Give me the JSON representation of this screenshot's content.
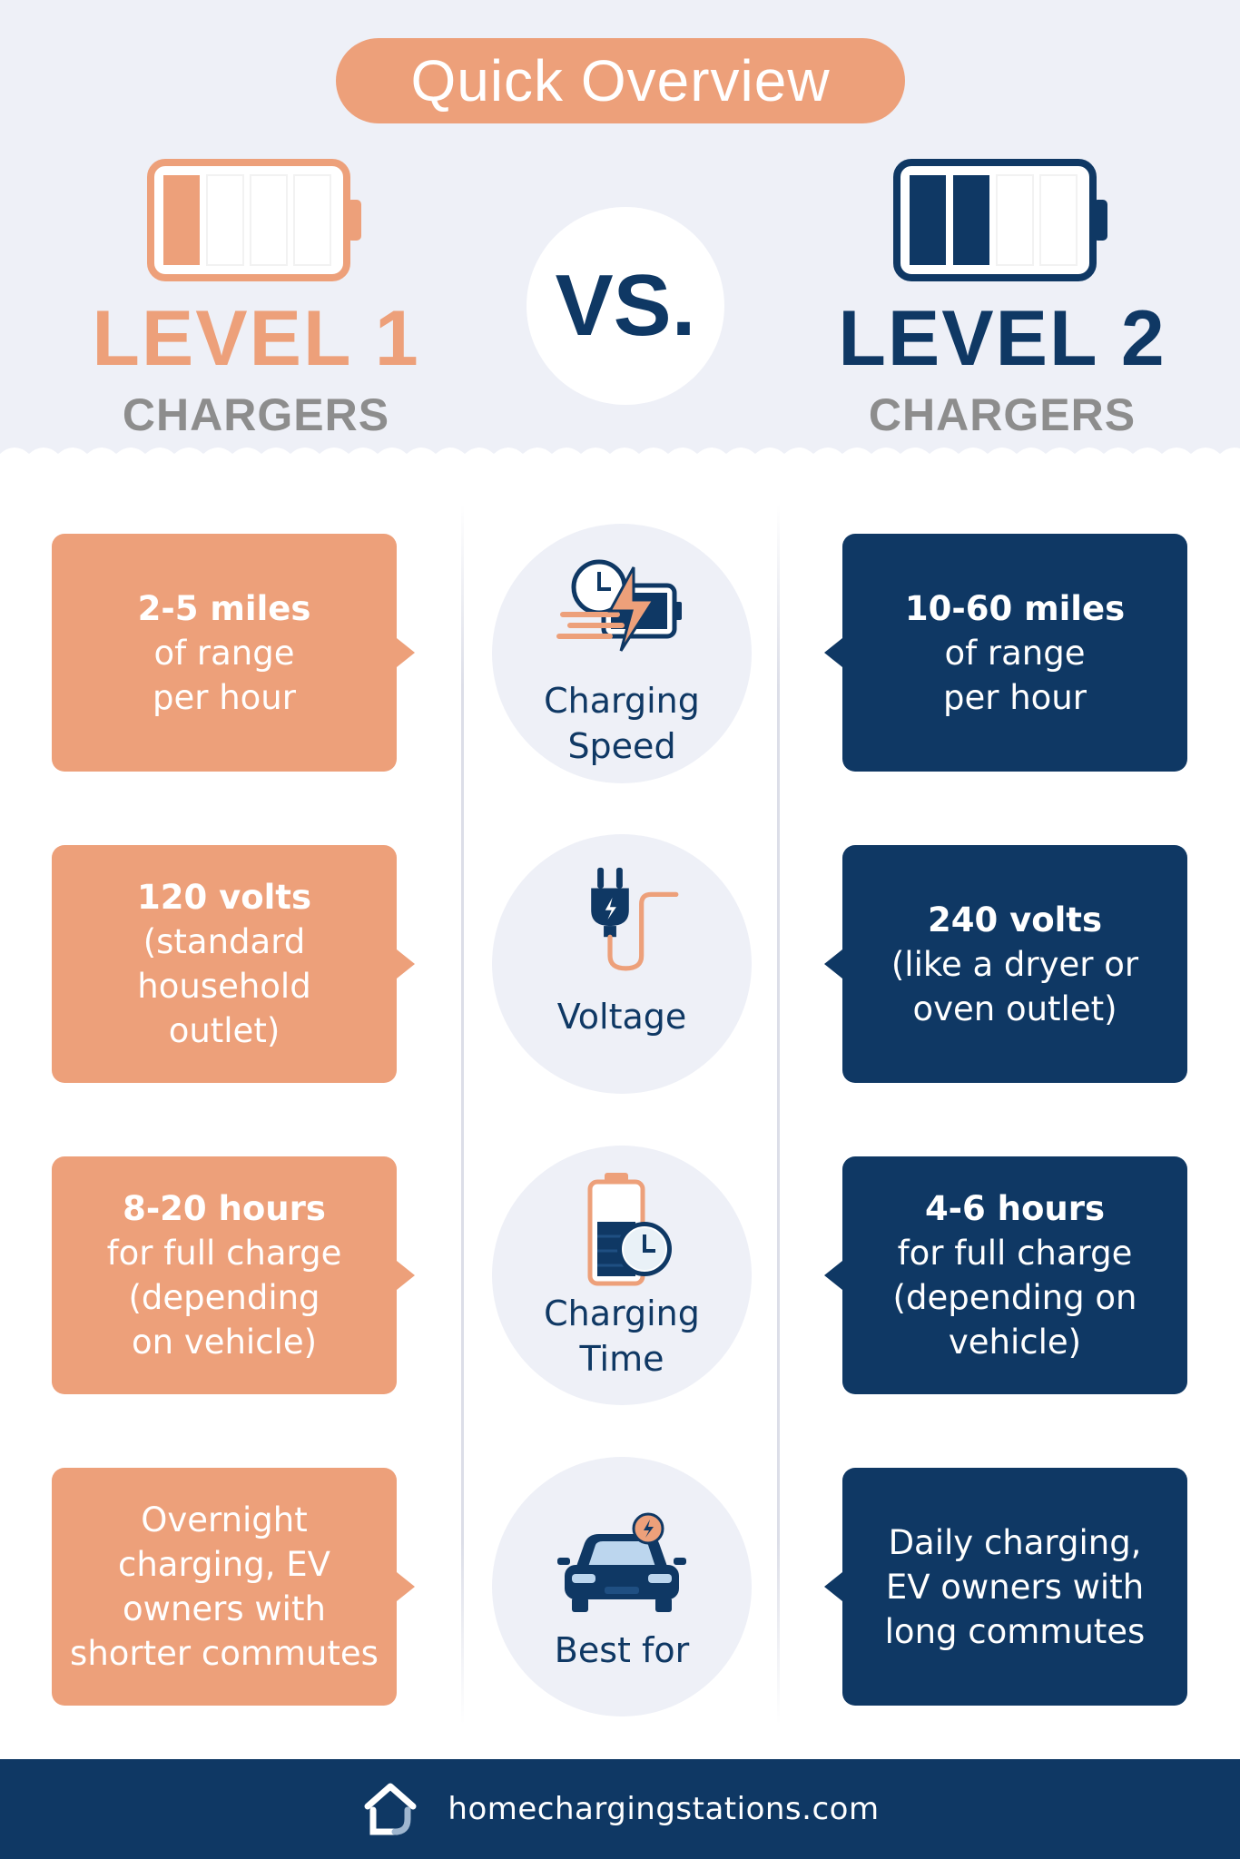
{
  "header": {
    "title": "Quick Overview",
    "vs": "VS.",
    "level1": {
      "title": "LEVEL 1",
      "subtitle": "CHARGERS",
      "color": "#eda07a"
    },
    "level2": {
      "title": "LEVEL 2",
      "subtitle": "CHARGERS",
      "color": "#0f3864"
    }
  },
  "rows": [
    {
      "category": [
        "Charging",
        "Speed"
      ],
      "icon": "charging-speed-icon",
      "level1": [
        "2-5 miles",
        "of range",
        "per hour"
      ],
      "level2": [
        "10-60 miles",
        "of range",
        "per hour"
      ]
    },
    {
      "category": [
        "Voltage"
      ],
      "icon": "plug-icon",
      "level1": [
        "120 volts",
        "(standard",
        "household",
        "outlet)"
      ],
      "level2": [
        "240 volts",
        "(like a dryer or",
        "oven outlet)"
      ]
    },
    {
      "category": [
        "Charging",
        "Time"
      ],
      "icon": "battery-clock-icon",
      "level1": [
        "8-20 hours",
        "for full charge",
        "(depending",
        "on vehicle)"
      ],
      "level2": [
        "4-6 hours",
        "for full charge",
        "(depending on",
        "vehicle)"
      ]
    },
    {
      "category": [
        "Best for"
      ],
      "icon": "car-icon",
      "level1": [
        "Overnight",
        "charging, EV",
        "owners with",
        "shorter commutes"
      ],
      "level2": [
        "Daily charging,",
        "EV owners with",
        "long commutes"
      ]
    }
  ],
  "footer": {
    "site": "homechargingstations.com"
  },
  "colors": {
    "orange": "#eda07a",
    "navy": "#0f3864",
    "background": "#eef0f7",
    "gray": "#8d8d8d"
  }
}
